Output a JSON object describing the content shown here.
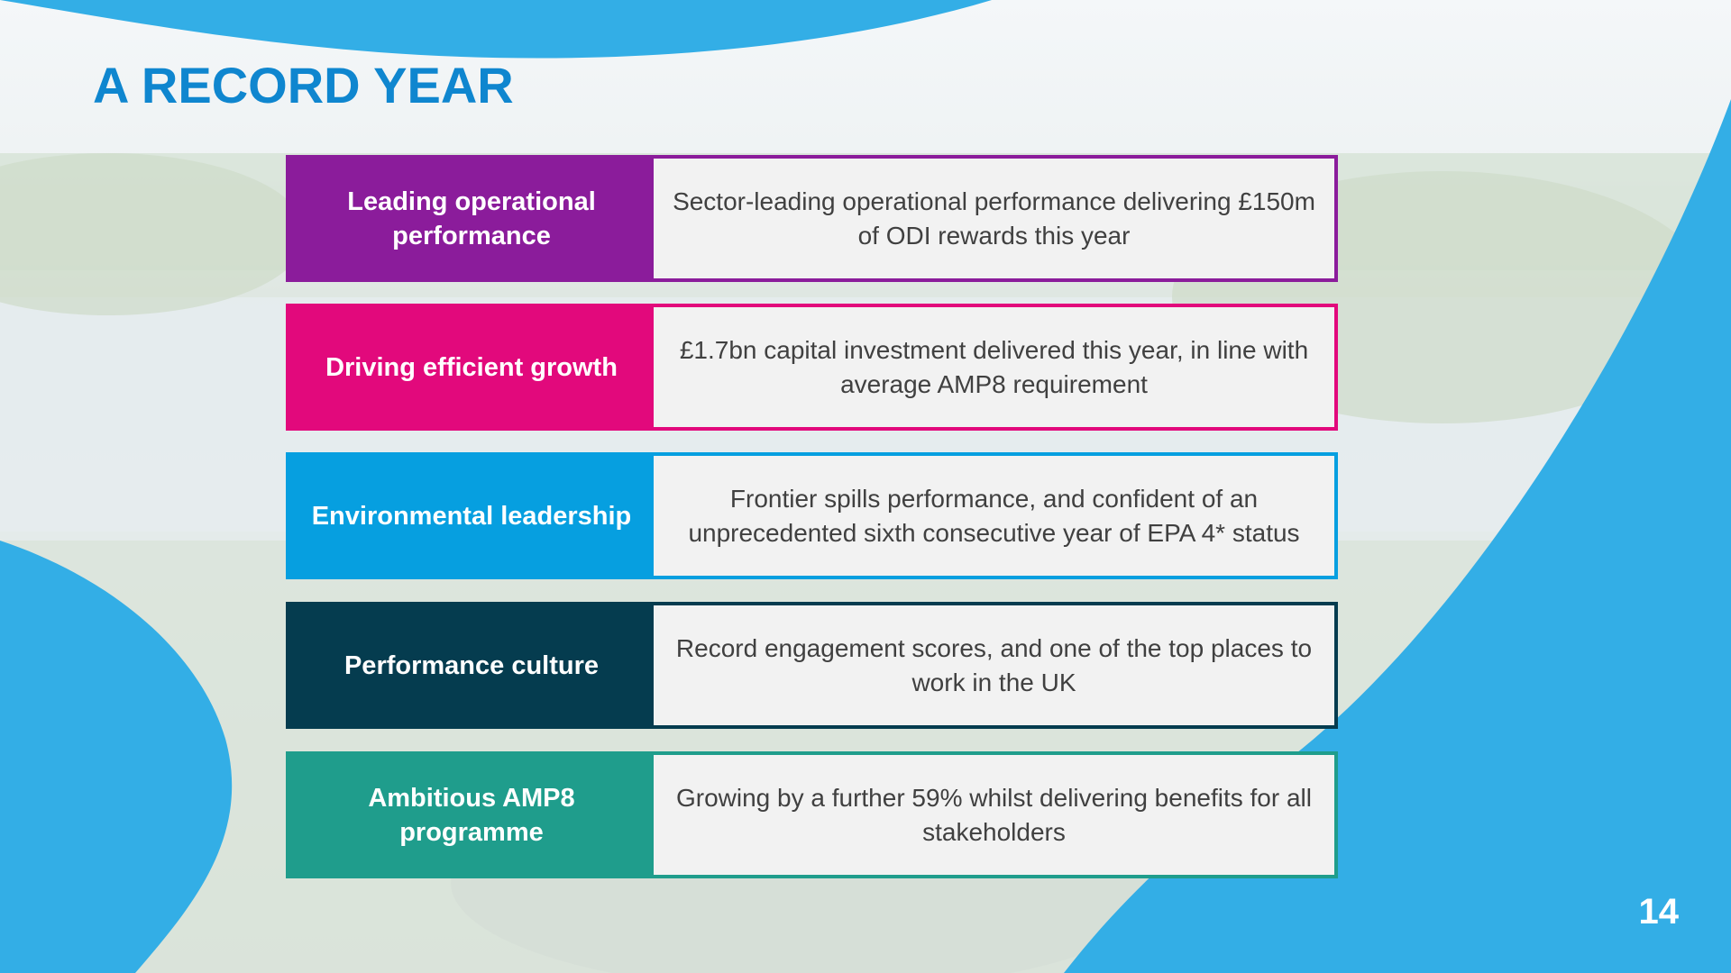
{
  "slide": {
    "title": "A RECORD YEAR",
    "page_number": "14"
  },
  "rows": [
    {
      "label": "Leading operational performance",
      "description": "Sector-leading operational performance delivering £150m of ODI rewards this year",
      "color": "#8b1c9b"
    },
    {
      "label": "Driving efficient growth",
      "description": "£1.7bn capital investment delivered this year, in line with average AMP8 requirement",
      "color": "#e2097c"
    },
    {
      "label": "Environmental leadership",
      "description": "Frontier spills performance, and confident of an unprecedented sixth consecutive year of EPA 4* status",
      "color": "#069fe0"
    },
    {
      "label": "Performance culture",
      "description": "Record engagement scores, and one of the top places to work in the UK",
      "color": "#053c4f"
    },
    {
      "label": "Ambitious AMP8 programme",
      "description": "Growing by a further 59% whilst delivering benefits for all stakeholders",
      "color": "#1f9d8c"
    }
  ],
  "colors": {
    "accent_blue": "#33aee6",
    "title_blue": "#0f86cf"
  }
}
